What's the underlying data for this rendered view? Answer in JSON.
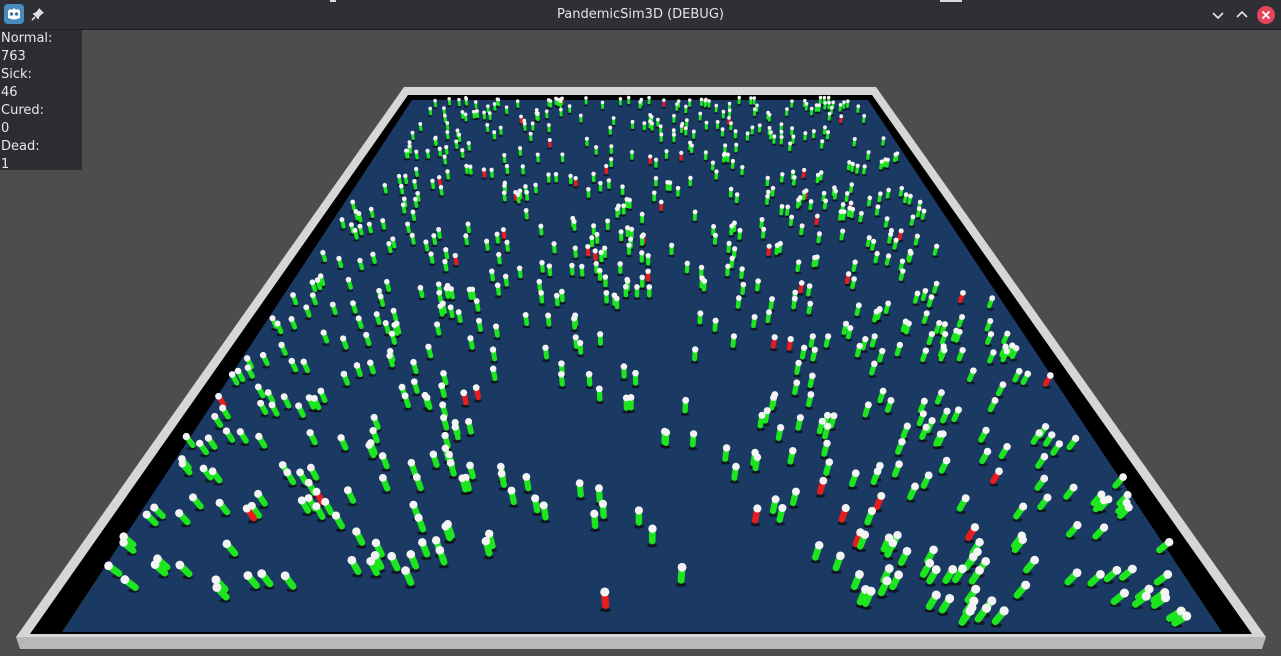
{
  "window": {
    "title": "PandemicSim3D (DEBUG)"
  },
  "stats": {
    "normal_label": "Normal:",
    "normal_value": "763",
    "sick_label": "Sick:",
    "sick_value": "46",
    "cured_label": "Cured:",
    "cured_value": "0",
    "dead_label": "Dead:",
    "dead_value": "1"
  },
  "colors": {
    "healthy": "#1ee61e",
    "sick": "#e81c1c",
    "ground": "#1b3a63",
    "border": "#d6d6d6",
    "wall": "#000000",
    "head": "#f4f4f4"
  },
  "icons": {
    "app": "godot-icon",
    "pin": "pin-icon",
    "minimize": "chevron-down-icon",
    "maximize": "chevron-up-icon",
    "close": "close-icon"
  },
  "scene": {
    "healthy_count": 763,
    "sick_count": 46,
    "cured_count": 0,
    "dead_count": 1
  }
}
